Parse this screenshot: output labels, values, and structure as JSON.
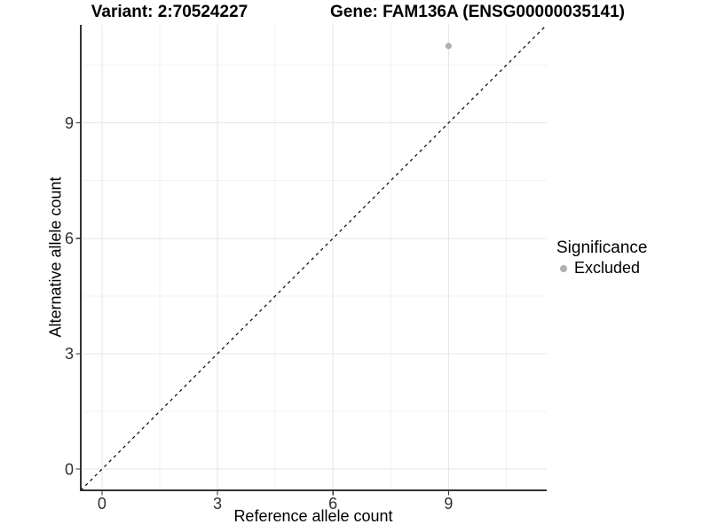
{
  "header": {
    "variant_title": "Variant: 2:70524227",
    "gene_title": "Gene: FAM136A (ENSG00000035141)"
  },
  "chart_data": {
    "type": "scatter",
    "x_axis": {
      "label": "Reference allele count",
      "ticks": [
        0,
        3,
        6,
        9
      ],
      "minor_ticks": [
        1.5,
        4.5,
        7.5,
        10.5
      ],
      "range": [
        -0.55,
        11.55
      ]
    },
    "y_axis": {
      "label": "Alternative allele count",
      "ticks": [
        0,
        3,
        6,
        9
      ],
      "minor_ticks": [
        1.5,
        4.5,
        7.5,
        10.5
      ],
      "range": [
        -0.55,
        11.55
      ]
    },
    "series": [
      {
        "name": "Excluded",
        "color": "#b0b0b0",
        "points": [
          {
            "x": 9,
            "y": 11
          }
        ]
      }
    ],
    "reference_line": {
      "slope": 1,
      "intercept": 0,
      "style": "dashed",
      "color": "#000000"
    },
    "legend": {
      "title": "Significance",
      "position": "right",
      "items": [
        {
          "label": "Excluded",
          "color": "#b0b0b0"
        }
      ]
    },
    "grid": {
      "major_color": "#e6e6e6",
      "minor_color": "#f2f2f2"
    },
    "axis_color": "#333333",
    "tick_label_color": "#303030",
    "background": "#ffffff"
  }
}
